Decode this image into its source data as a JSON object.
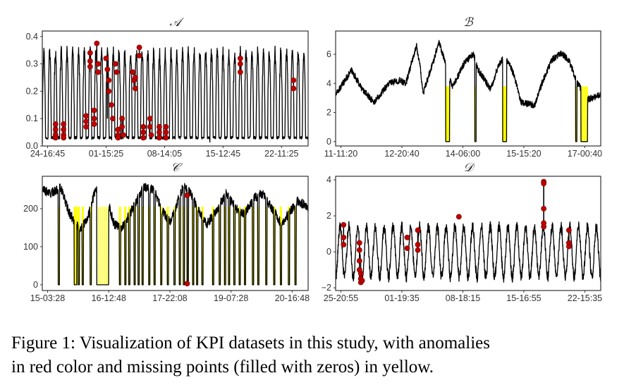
{
  "caption": {
    "line1": "Figure 1: Visualization of KPI datasets in this study, with anomalies",
    "line2": "in red color and missing points (filled with zeros) in yellow."
  },
  "colors": {
    "series": "#000000",
    "anomaly": "#c00000",
    "missing": "#ffff00"
  },
  "chart_data": [
    {
      "type": "line",
      "title": "𝒜",
      "ylim": [
        0,
        0.42
      ],
      "yticks": [
        "0.0",
        "0.1",
        "0.2",
        "0.3",
        "0.4"
      ],
      "ytick_values": [
        0,
        0.1,
        0.2,
        0.3,
        0.4
      ],
      "xticks": [
        "24-16:45",
        "01-15:25",
        "08-14:05",
        "15-12:45",
        "22-11:25"
      ],
      "pattern": {
        "kind": "spiky_daily",
        "cycles": 46,
        "low": 0.02,
        "high": 0.34,
        "noise": 0.025
      },
      "missing": [],
      "anomaly_points": [
        {
          "x": 0.05,
          "y": 0.08
        },
        {
          "x": 0.05,
          "y": 0.06
        },
        {
          "x": 0.05,
          "y": 0.04
        },
        {
          "x": 0.05,
          "y": 0.03
        },
        {
          "x": 0.08,
          "y": 0.08
        },
        {
          "x": 0.08,
          "y": 0.06
        },
        {
          "x": 0.08,
          "y": 0.04
        },
        {
          "x": 0.08,
          "y": 0.03
        },
        {
          "x": 0.165,
          "y": 0.11
        },
        {
          "x": 0.165,
          "y": 0.09
        },
        {
          "x": 0.165,
          "y": 0.07
        },
        {
          "x": 0.18,
          "y": 0.34
        },
        {
          "x": 0.18,
          "y": 0.31
        },
        {
          "x": 0.18,
          "y": 0.29
        },
        {
          "x": 0.195,
          "y": 0.13
        },
        {
          "x": 0.195,
          "y": 0.1
        },
        {
          "x": 0.195,
          "y": 0.08
        },
        {
          "x": 0.205,
          "y": 0.375
        },
        {
          "x": 0.21,
          "y": 0.3
        },
        {
          "x": 0.21,
          "y": 0.27
        },
        {
          "x": 0.24,
          "y": 0.32
        },
        {
          "x": 0.245,
          "y": 0.28
        },
        {
          "x": 0.25,
          "y": 0.24
        },
        {
          "x": 0.25,
          "y": 0.2
        },
        {
          "x": 0.26,
          "y": 0.15
        },
        {
          "x": 0.265,
          "y": 0.1
        },
        {
          "x": 0.275,
          "y": 0.3
        },
        {
          "x": 0.28,
          "y": 0.27
        },
        {
          "x": 0.285,
          "y": 0.06
        },
        {
          "x": 0.285,
          "y": 0.04
        },
        {
          "x": 0.285,
          "y": 0.03
        },
        {
          "x": 0.3,
          "y": 0.1
        },
        {
          "x": 0.3,
          "y": 0.07
        },
        {
          "x": 0.305,
          "y": 0.04
        },
        {
          "x": 0.34,
          "y": 0.27
        },
        {
          "x": 0.345,
          "y": 0.24
        },
        {
          "x": 0.35,
          "y": 0.21
        },
        {
          "x": 0.35,
          "y": 0.25
        },
        {
          "x": 0.365,
          "y": 0.36
        },
        {
          "x": 0.365,
          "y": 0.33
        },
        {
          "x": 0.38,
          "y": 0.07
        },
        {
          "x": 0.38,
          "y": 0.05
        },
        {
          "x": 0.38,
          "y": 0.03
        },
        {
          "x": 0.405,
          "y": 0.1
        },
        {
          "x": 0.405,
          "y": 0.07
        },
        {
          "x": 0.41,
          "y": 0.04
        },
        {
          "x": 0.44,
          "y": 0.07
        },
        {
          "x": 0.44,
          "y": 0.05
        },
        {
          "x": 0.44,
          "y": 0.03
        },
        {
          "x": 0.465,
          "y": 0.07
        },
        {
          "x": 0.465,
          "y": 0.05
        },
        {
          "x": 0.465,
          "y": 0.03
        },
        {
          "x": 0.745,
          "y": 0.32
        },
        {
          "x": 0.745,
          "y": 0.3
        },
        {
          "x": 0.745,
          "y": 0.27
        },
        {
          "x": 0.945,
          "y": 0.24
        },
        {
          "x": 0.945,
          "y": 0.21
        }
      ],
      "anomaly_segments": [
        [
          0.05,
          0.03,
          0.08
        ],
        [
          0.08,
          0.03,
          0.08
        ],
        [
          0.165,
          0.07,
          0.11
        ],
        [
          0.18,
          0.29,
          0.34
        ],
        [
          0.195,
          0.08,
          0.13
        ],
        [
          0.205,
          0.27,
          0.375
        ],
        [
          0.245,
          0.1,
          0.32
        ],
        [
          0.285,
          0.03,
          0.06
        ],
        [
          0.3,
          0.04,
          0.1
        ],
        [
          0.345,
          0.21,
          0.27
        ],
        [
          0.365,
          0.33,
          0.36
        ],
        [
          0.38,
          0.03,
          0.07
        ],
        [
          0.405,
          0.04,
          0.1
        ],
        [
          0.44,
          0.03,
          0.07
        ],
        [
          0.465,
          0.03,
          0.07
        ],
        [
          0.745,
          0.27,
          0.32
        ],
        [
          0.945,
          0.21,
          0.24
        ]
      ]
    },
    {
      "type": "line",
      "title": "ℬ",
      "ylim": [
        -0.3,
        7.6
      ],
      "yticks": [
        "0",
        "2",
        "4",
        "6"
      ],
      "ytick_values": [
        0,
        2,
        4,
        6
      ],
      "xticks": [
        "11-11:20",
        "12-20:40",
        "14-06:00",
        "15-15:20",
        "17-00:40"
      ],
      "pattern": {
        "kind": "waves",
        "keypoints": [
          [
            0,
            3.2
          ],
          [
            0.12,
            4.9
          ],
          [
            0.2,
            3.6
          ],
          [
            0.29,
            2.7
          ],
          [
            0.4,
            4.0
          ],
          [
            0.48,
            4.2
          ],
          [
            0.53,
            4.0
          ],
          [
            0.61,
            6.6
          ],
          [
            0.64,
            5.0
          ],
          [
            0.66,
            3.3
          ],
          [
            0.73,
            5.3
          ],
          [
            0.78,
            6.9
          ],
          [
            0.84,
            5.0
          ],
          [
            0.88,
            3.7
          ],
          [
            0.97,
            5.4
          ],
          [
            1.04,
            6.0
          ],
          [
            1.07,
            5.0
          ],
          [
            1.17,
            3.6
          ],
          [
            1.23,
            5.3
          ],
          [
            1.28,
            5.9
          ],
          [
            1.34,
            4.7
          ],
          [
            1.4,
            2.7
          ],
          [
            1.5,
            2.5
          ],
          [
            1.56,
            4.1
          ],
          [
            1.63,
            5.6
          ],
          [
            1.7,
            6.1
          ],
          [
            1.76,
            5.6
          ],
          [
            1.82,
            4.1
          ],
          [
            1.9,
            2.9
          ],
          [
            2.0,
            3.2
          ]
        ],
        "noise": 0.22
      },
      "missing": [
        [
          0.415,
          0.43
        ],
        [
          0.525,
          0.53
        ],
        [
          0.63,
          0.645
        ],
        [
          0.905,
          0.91
        ],
        [
          0.925,
          0.95
        ]
      ],
      "anomaly_points": [],
      "anomaly_segments": []
    },
    {
      "type": "line",
      "title": "𝒞",
      "ylim": [
        -15,
        285
      ],
      "yticks": [
        "0",
        "100",
        "200"
      ],
      "ytick_values": [
        0,
        100,
        200
      ],
      "xticks": [
        "15-03:28",
        "16-12:48",
        "17-22:08",
        "19-07:28",
        "20-16:48"
      ],
      "pattern": {
        "kind": "waves",
        "keypoints": [
          [
            0,
            250
          ],
          [
            0.03,
            240
          ],
          [
            0.07,
            255
          ],
          [
            0.1,
            190
          ],
          [
            0.14,
            145
          ],
          [
            0.17,
            175
          ],
          [
            0.2,
            250
          ],
          [
            0.23,
            260
          ],
          [
            0.27,
            160
          ],
          [
            0.3,
            150
          ],
          [
            0.34,
            200
          ],
          [
            0.38,
            255
          ],
          [
            0.42,
            250
          ],
          [
            0.45,
            195
          ],
          [
            0.48,
            165
          ],
          [
            0.5,
            200
          ],
          [
            0.53,
            260
          ],
          [
            0.56,
            240
          ],
          [
            0.59,
            190
          ],
          [
            0.62,
            160
          ],
          [
            0.66,
            200
          ],
          [
            0.69,
            240
          ],
          [
            0.73,
            200
          ],
          [
            0.76,
            185
          ],
          [
            0.8,
            230
          ],
          [
            0.83,
            240
          ],
          [
            0.86,
            205
          ],
          [
            0.9,
            160
          ],
          [
            0.93,
            190
          ],
          [
            0.96,
            220
          ],
          [
            1.0,
            205
          ]
        ],
        "noise": 12
      },
      "missing": [
        [
          0.06,
          0.065
        ],
        [
          0.12,
          0.13
        ],
        [
          0.135,
          0.14
        ],
        [
          0.15,
          0.155
        ],
        [
          0.18,
          0.185
        ],
        [
          0.205,
          0.25
        ],
        [
          0.29,
          0.295
        ],
        [
          0.31,
          0.315
        ],
        [
          0.325,
          0.33
        ],
        [
          0.345,
          0.35
        ],
        [
          0.36,
          0.365
        ],
        [
          0.375,
          0.38
        ],
        [
          0.4,
          0.405
        ],
        [
          0.42,
          0.425
        ],
        [
          0.445,
          0.45
        ],
        [
          0.47,
          0.475
        ],
        [
          0.495,
          0.5
        ],
        [
          0.515,
          0.52
        ],
        [
          0.53,
          0.535
        ],
        [
          0.545,
          0.55
        ],
        [
          0.565,
          0.57
        ],
        [
          0.58,
          0.585
        ],
        [
          0.6,
          0.605
        ],
        [
          0.64,
          0.645
        ],
        [
          0.665,
          0.67
        ],
        [
          0.685,
          0.69
        ],
        [
          0.7,
          0.705
        ],
        [
          0.72,
          0.725
        ],
        [
          0.74,
          0.745
        ],
        [
          0.76,
          0.765
        ],
        [
          0.79,
          0.795
        ],
        [
          0.81,
          0.815
        ],
        [
          0.84,
          0.845
        ],
        [
          0.87,
          0.875
        ],
        [
          0.895,
          0.9
        ],
        [
          0.925,
          0.93
        ],
        [
          0.95,
          0.955
        ]
      ],
      "anomaly_points": [
        {
          "x": 0.545,
          "y": 235
        },
        {
          "x": 0.545,
          "y": 3
        }
      ],
      "anomaly_segments": [
        [
          0.545,
          3,
          235
        ]
      ]
    },
    {
      "type": "line",
      "title": "𝒟",
      "ylim": [
        -2.15,
        4.2
      ],
      "yticks": [
        "−2",
        "0",
        "2",
        "4"
      ],
      "ytick_values": [
        -2,
        0,
        2,
        4
      ],
      "xticks": [
        "25-20:55",
        "01-19:35",
        "08-18:15",
        "15-16:55",
        "22-15:35"
      ],
      "pattern": {
        "kind": "oscillate",
        "cycles": 30,
        "low": -1.4,
        "high": 1.4,
        "noise": 0.3
      },
      "missing": [],
      "anomaly_points": [
        {
          "x": 0.03,
          "y": 1.5
        },
        {
          "x": 0.03,
          "y": 0.8
        },
        {
          "x": 0.03,
          "y": 0.4
        },
        {
          "x": 0.09,
          "y": 0.5
        },
        {
          "x": 0.09,
          "y": 0.1
        },
        {
          "x": 0.09,
          "y": -0.5
        },
        {
          "x": 0.095,
          "y": -1.2
        },
        {
          "x": 0.095,
          "y": -1.5
        },
        {
          "x": 0.095,
          "y": -1.7
        },
        {
          "x": 0.09,
          "y": -1.0
        },
        {
          "x": 0.1,
          "y": -1.6
        },
        {
          "x": 0.27,
          "y": 0.2
        },
        {
          "x": 0.27,
          "y": 0.8
        },
        {
          "x": 0.31,
          "y": 1.2
        },
        {
          "x": 0.31,
          "y": 0.4
        },
        {
          "x": 0.31,
          "y": 0.1
        },
        {
          "x": 0.465,
          "y": 1.95
        },
        {
          "x": 0.785,
          "y": 3.9
        },
        {
          "x": 0.785,
          "y": 3.8
        },
        {
          "x": 0.785,
          "y": 2.4
        },
        {
          "x": 0.785,
          "y": 1.6
        },
        {
          "x": 0.785,
          "y": 1.4
        },
        {
          "x": 0.88,
          "y": 1.2
        },
        {
          "x": 0.88,
          "y": 0.5
        },
        {
          "x": 0.88,
          "y": 0.3
        }
      ],
      "anomaly_segments": [
        [
          0.03,
          0.4,
          1.5
        ],
        [
          0.09,
          -1.7,
          0.5
        ],
        [
          0.31,
          0.1,
          1.2
        ],
        [
          0.785,
          1.4,
          3.9
        ],
        [
          0.88,
          0.3,
          1.2
        ]
      ]
    }
  ]
}
